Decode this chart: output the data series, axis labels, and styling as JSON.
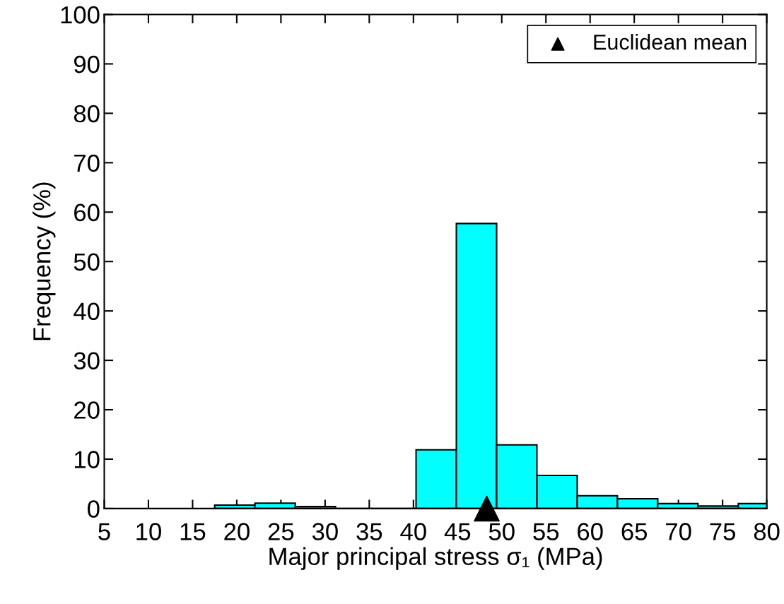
{
  "chart_data": {
    "type": "histogram",
    "xlabel": "Major principal stress σ₁ (MPa)",
    "ylabel": "Frequency (%)",
    "bins": [
      17.5,
      22.06,
      26.62,
      31.18,
      35.74,
      40.3,
      44.86,
      49.42,
      53.98,
      58.54,
      63.1,
      67.66,
      72.22,
      76.78,
      81.34
    ],
    "values": [
      0.7,
      1.1,
      0.4,
      0,
      0,
      11.9,
      57.7,
      12.9,
      6.7,
      2.6,
      2.0,
      1.0,
      0.5,
      1.0
    ],
    "color": "#00ffff",
    "series": [
      {
        "type": "scatter",
        "name": "Euclidean mean",
        "x": [
          48.3
        ],
        "values": [
          0
        ],
        "color": "#000000",
        "marker": "triangle"
      }
    ],
    "xlim": [
      5,
      80
    ],
    "xticks": [
      5,
      10,
      15,
      20,
      25,
      30,
      35,
      40,
      45,
      50,
      55,
      60,
      65,
      70,
      75,
      80
    ],
    "ylim": [
      0,
      100
    ],
    "yticks": [
      0,
      10,
      20,
      30,
      40,
      50,
      60,
      70,
      80,
      90,
      100
    ],
    "grid": false,
    "legend": "top right"
  }
}
